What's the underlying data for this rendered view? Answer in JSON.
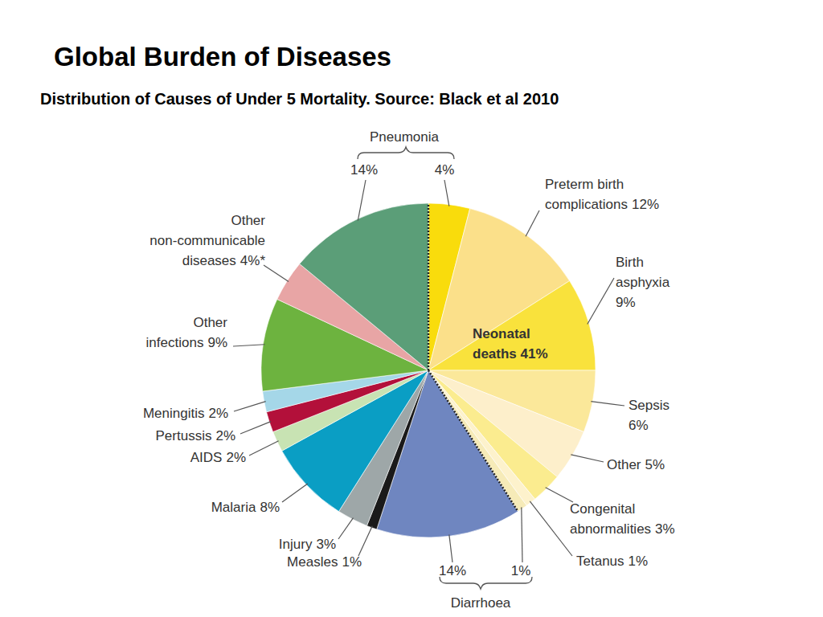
{
  "chart_data": {
    "type": "pie",
    "title": "Global Burden of Diseases",
    "subtitle": "Distribution of Causes of Under 5 Mortality. Source: Black et al 2010",
    "categories": [
      null,
      "Preterm birth complications",
      "Birth asphyxia",
      "Sepsis",
      "Other",
      "Congenital abnormalities",
      "Tetanus",
      null,
      null,
      "Measles",
      "Injury",
      "Malaria",
      "AIDS",
      "Pertussis",
      "Meningitis",
      "Other infections",
      "Other non-communicable diseases",
      null
    ],
    "values": [
      4,
      12,
      9,
      6,
      5,
      3,
      1,
      1,
      14,
      1,
      3,
      8,
      2,
      2,
      2,
      9,
      4,
      14
    ],
    "value_labels": [
      "4%",
      "12%",
      "9%",
      "6%",
      "5%",
      "3%",
      "1%",
      "1%",
      "14%",
      "1%",
      "3%",
      "8%",
      "2%",
      "2%",
      "2%",
      "9%",
      "4%*",
      "14%"
    ],
    "colors": [
      "#f9dc0c",
      "#fbe08a",
      "#f9e23c",
      "#fbe89a",
      "#fdefcb",
      "#fbec8f",
      "#fdf2cc",
      "#f6ebb8",
      "#6f86c0",
      "#1a1a1a",
      "#9ea7a8",
      "#0a9ec4",
      "#c8e3b3",
      "#b3103a",
      "#a5d7e8",
      "#6db33f",
      "#e8a5a5",
      "#5b9e78"
    ],
    "data_labels": true,
    "annotations": [
      "Pneumonia",
      "Diarrhoea",
      "Neonatal deaths 41%"
    ]
  }
}
